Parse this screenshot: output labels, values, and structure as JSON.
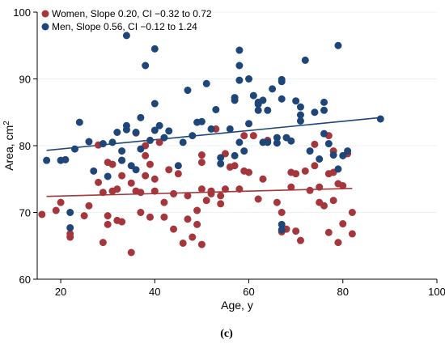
{
  "chart_data": {
    "type": "scatter",
    "xlabel": "Age, y",
    "ylabel": "Area, cm",
    "ylabel_superscript": "2",
    "xlim": [
      15,
      100
    ],
    "ylim": [
      60,
      100
    ],
    "xticks": [
      20,
      40,
      60,
      80,
      100
    ],
    "yticks": [
      60,
      70,
      80,
      90,
      100
    ],
    "grid": true,
    "legend_position": "top-left",
    "caption": "(c)",
    "series": [
      {
        "name": "Women, Slope 0.20, CI −0.32 to 0.72",
        "color": "#a5373c",
        "fit": {
          "x": [
            17,
            82
          ],
          "y": [
            72.4,
            73.6
          ]
        },
        "points": [
          [
            16,
            69.7
          ],
          [
            19,
            70.3
          ],
          [
            20,
            71.5
          ],
          [
            22,
            66.3
          ],
          [
            22,
            66.8
          ],
          [
            25,
            69.5
          ],
          [
            26,
            71.0
          ],
          [
            28,
            80.1
          ],
          [
            28,
            74.5
          ],
          [
            29,
            65.5
          ],
          [
            29,
            73.0
          ],
          [
            30,
            69.5
          ],
          [
            30,
            68.2
          ],
          [
            30,
            77.5
          ],
          [
            31,
            73.2
          ],
          [
            31,
            77.2
          ],
          [
            32,
            68.8
          ],
          [
            32,
            73.5
          ],
          [
            33,
            68.6
          ],
          [
            33,
            75.5
          ],
          [
            33,
            77.8
          ],
          [
            35,
            64.0
          ],
          [
            35,
            74.4
          ],
          [
            36,
            73.2
          ],
          [
            36,
            81.9
          ],
          [
            37,
            73.0
          ],
          [
            37,
            70.0
          ],
          [
            38,
            78.5
          ],
          [
            38,
            80.0
          ],
          [
            38,
            75.5
          ],
          [
            39,
            77.2
          ],
          [
            39,
            69.3
          ],
          [
            40,
            73.2
          ],
          [
            40,
            75.0
          ],
          [
            41,
            80.5
          ],
          [
            42,
            71.5
          ],
          [
            42,
            69.3
          ],
          [
            43,
            76.4
          ],
          [
            44,
            67.5
          ],
          [
            44,
            72.8
          ],
          [
            45,
            75.8
          ],
          [
            46,
            65.4
          ],
          [
            47,
            72.5
          ],
          [
            47,
            69.0
          ],
          [
            48,
            66.3
          ],
          [
            49,
            70.3
          ],
          [
            49,
            68.2
          ],
          [
            50,
            65.2
          ],
          [
            50,
            77.5
          ],
          [
            50,
            78.6
          ],
          [
            50,
            73.5
          ],
          [
            51,
            71.8
          ],
          [
            52,
            72.8
          ],
          [
            52,
            73.2
          ],
          [
            53,
            82.5
          ],
          [
            54,
            72.5
          ],
          [
            54,
            71.3
          ],
          [
            55,
            78.8
          ],
          [
            55,
            73.5
          ],
          [
            56,
            76.8
          ],
          [
            57,
            77.0
          ],
          [
            58,
            73.5
          ],
          [
            59,
            81.5
          ],
          [
            59,
            76.2
          ],
          [
            60,
            76.0
          ],
          [
            61,
            81.5
          ],
          [
            62,
            72.0
          ],
          [
            63,
            75.0
          ],
          [
            64,
            80.8
          ],
          [
            66,
            71.5
          ],
          [
            67,
            70.0
          ],
          [
            67,
            67.1
          ],
          [
            68,
            67.5
          ],
          [
            69,
            76.0
          ],
          [
            69,
            73.8
          ],
          [
            70,
            75.8
          ],
          [
            70,
            67.2
          ],
          [
            71,
            65.8
          ],
          [
            72,
            76.2
          ],
          [
            73,
            73.3
          ],
          [
            74,
            77.0
          ],
          [
            74,
            80.2
          ],
          [
            75,
            71.5
          ],
          [
            75,
            73.8
          ],
          [
            76,
            71.0
          ],
          [
            77,
            75.8
          ],
          [
            77,
            67.0
          ],
          [
            77,
            81.5
          ],
          [
            78,
            79.2
          ],
          [
            78,
            76.0
          ],
          [
            78,
            71.8
          ],
          [
            79,
            65.5
          ],
          [
            79,
            74.3
          ],
          [
            80,
            68.3
          ],
          [
            80,
            74.0
          ],
          [
            81,
            78.8
          ],
          [
            82,
            70.0
          ],
          [
            82,
            66.8
          ]
        ]
      },
      {
        "name": "Men, Slope 0.56, CI −0.12 to 1.24",
        "color": "#1e4678",
        "fit": {
          "x": [
            17,
            88
          ],
          "y": [
            79.3,
            84.2
          ]
        },
        "points": [
          [
            17,
            77.8
          ],
          [
            20,
            77.8
          ],
          [
            21,
            77.9
          ],
          [
            22,
            70.0
          ],
          [
            22,
            67.7
          ],
          [
            23,
            79.5
          ],
          [
            24,
            83.5
          ],
          [
            26,
            80.6
          ],
          [
            27,
            76.2
          ],
          [
            29,
            80.3
          ],
          [
            30,
            75.4
          ],
          [
            31,
            80.5
          ],
          [
            32,
            82.0
          ],
          [
            33,
            77.8
          ],
          [
            33,
            79.2
          ],
          [
            34,
            96.5
          ],
          [
            34,
            83.0
          ],
          [
            34,
            82.4
          ],
          [
            35,
            77.0
          ],
          [
            36,
            76.4
          ],
          [
            36,
            82.0
          ],
          [
            37,
            84.2
          ],
          [
            37,
            79.5
          ],
          [
            38,
            92.0
          ],
          [
            39,
            80.8
          ],
          [
            40,
            94.5
          ],
          [
            40,
            86.3
          ],
          [
            40,
            82.3
          ],
          [
            41,
            83.0
          ],
          [
            42,
            81.2
          ],
          [
            43,
            82.2
          ],
          [
            45,
            77.0
          ],
          [
            46,
            80.5
          ],
          [
            47,
            88.3
          ],
          [
            48,
            81.5
          ],
          [
            49,
            83.5
          ],
          [
            50,
            83.6
          ],
          [
            51,
            89.3
          ],
          [
            52,
            82.5
          ],
          [
            53,
            85.4
          ],
          [
            54,
            78.2
          ],
          [
            54,
            77.3
          ],
          [
            56,
            82.5
          ],
          [
            57,
            78.5
          ],
          [
            57,
            86.8
          ],
          [
            57,
            87.2
          ],
          [
            58,
            94.3
          ],
          [
            58,
            92.0
          ],
          [
            58,
            89.8
          ],
          [
            58,
            80.5
          ],
          [
            59,
            79.2
          ],
          [
            60,
            90.0
          ],
          [
            60,
            83.3
          ],
          [
            61,
            87.5
          ],
          [
            62,
            86.5
          ],
          [
            62,
            86.2
          ],
          [
            62,
            85.3
          ],
          [
            63,
            80.5
          ],
          [
            63,
            86.8
          ],
          [
            64,
            80.5
          ],
          [
            64,
            85.3
          ],
          [
            65,
            88.5
          ],
          [
            66,
            81.2
          ],
          [
            66,
            80.4
          ],
          [
            67,
            87.0
          ],
          [
            67,
            89.6
          ],
          [
            67,
            89.9
          ],
          [
            67,
            68.2
          ],
          [
            67,
            67.4
          ],
          [
            68,
            81.2
          ],
          [
            69,
            80.7
          ],
          [
            70,
            86.7
          ],
          [
            71,
            85.8
          ],
          [
            71,
            83.7
          ],
          [
            71,
            84.6
          ],
          [
            72,
            92.8
          ],
          [
            73,
            79.2
          ],
          [
            74,
            85.0
          ],
          [
            75,
            78.0
          ],
          [
            76,
            86.5
          ],
          [
            76,
            85.3
          ],
          [
            76,
            81.8
          ],
          [
            77,
            80.3
          ],
          [
            78,
            78.6
          ],
          [
            79,
            95.0
          ],
          [
            80,
            78.5
          ],
          [
            81,
            79.2
          ],
          [
            88,
            84.0
          ],
          [
            79,
            76.5
          ]
        ]
      }
    ]
  }
}
